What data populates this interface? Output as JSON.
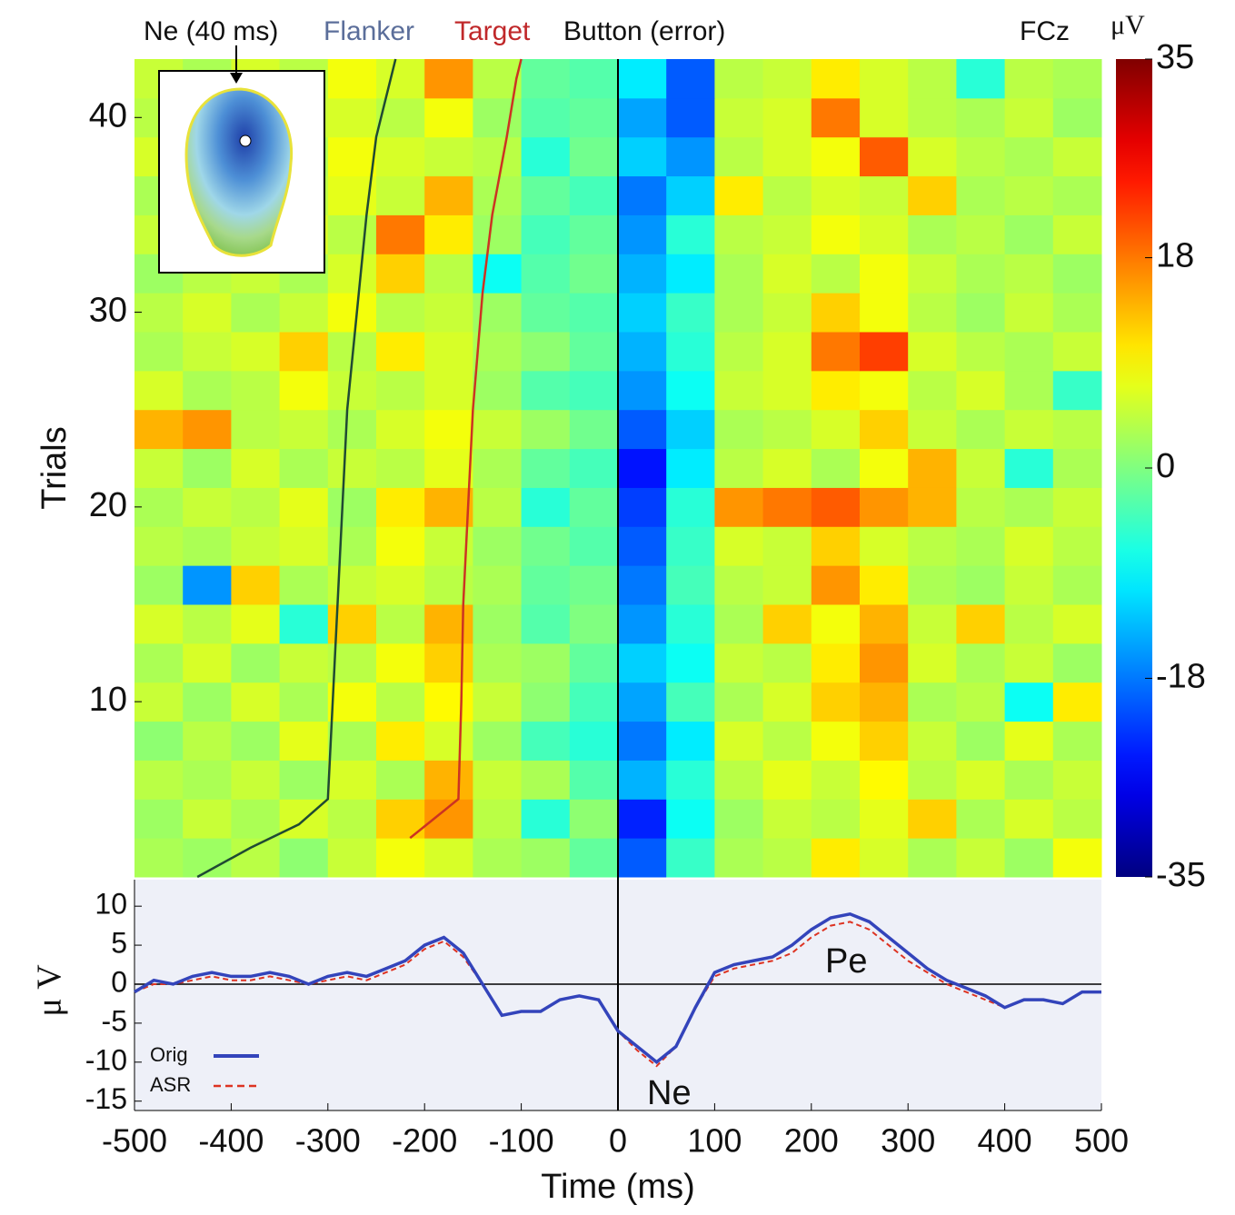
{
  "chart_data": [
    {
      "type": "heatmap",
      "inset_label": "Ne (40 ms)",
      "channel": "FCz",
      "ylabel": "Trials",
      "colormap": "jet",
      "colorbar_label": "μV",
      "clim": [
        -35,
        35
      ],
      "cticks": [
        -35,
        -18,
        0,
        18,
        35
      ],
      "xlim": [
        -500,
        500
      ],
      "ylim": [
        1,
        43
      ],
      "yticks": [
        10,
        20,
        30,
        40
      ],
      "x": [
        -475,
        -425,
        -375,
        -325,
        -275,
        -225,
        -175,
        -125,
        -75,
        -25,
        25,
        75,
        125,
        175,
        225,
        275,
        325,
        375,
        425,
        475
      ],
      "y": [
        2,
        4,
        6,
        8,
        10,
        12,
        14,
        16,
        18,
        20,
        22,
        24,
        26,
        28,
        30,
        32,
        34,
        36,
        38,
        40,
        42
      ],
      "z": [
        [
          3,
          2,
          4,
          1,
          5,
          8,
          6,
          3,
          2,
          -2,
          -20,
          -5,
          3,
          4,
          10,
          6,
          3,
          5,
          2,
          8
        ],
        [
          2,
          5,
          3,
          6,
          4,
          12,
          16,
          4,
          -6,
          1,
          -24,
          -8,
          2,
          5,
          4,
          7,
          12,
          3,
          6,
          4
        ],
        [
          4,
          3,
          5,
          2,
          6,
          3,
          14,
          5,
          3,
          -3,
          -14,
          -6,
          4,
          7,
          5,
          9,
          4,
          6,
          3,
          5
        ],
        [
          1,
          4,
          2,
          7,
          3,
          10,
          6,
          2,
          -4,
          -6,
          -18,
          -10,
          6,
          4,
          8,
          12,
          5,
          2,
          7,
          3
        ],
        [
          5,
          2,
          6,
          3,
          8,
          4,
          9,
          5,
          1,
          -4,
          -15,
          -4,
          3,
          6,
          12,
          14,
          3,
          4,
          -8,
          10
        ],
        [
          3,
          6,
          2,
          5,
          4,
          8,
          12,
          3,
          2,
          -2,
          -12,
          -8,
          5,
          4,
          10,
          16,
          6,
          3,
          5,
          2
        ],
        [
          6,
          4,
          7,
          -6,
          12,
          4,
          14,
          2,
          -3,
          0,
          -16,
          -6,
          3,
          12,
          8,
          14,
          5,
          12,
          4,
          6
        ],
        [
          2,
          -16,
          12,
          3,
          5,
          6,
          4,
          3,
          -2,
          -1,
          -18,
          -4,
          4,
          5,
          16,
          10,
          3,
          2,
          5,
          3
        ],
        [
          4,
          3,
          5,
          6,
          3,
          8,
          5,
          2,
          -1,
          -3,
          -20,
          -5,
          6,
          5,
          12,
          6,
          4,
          3,
          6,
          4
        ],
        [
          3,
          5,
          4,
          7,
          2,
          10,
          14,
          4,
          -6,
          -2,
          -22,
          -6,
          16,
          18,
          20,
          16,
          14,
          4,
          3,
          5
        ],
        [
          5,
          2,
          6,
          3,
          5,
          4,
          7,
          3,
          -2,
          -4,
          -25,
          -10,
          4,
          6,
          3,
          8,
          14,
          5,
          -6,
          3
        ],
        [
          14,
          16,
          4,
          5,
          3,
          6,
          8,
          5,
          2,
          -1,
          -20,
          -12,
          3,
          4,
          6,
          12,
          5,
          3,
          5,
          4
        ],
        [
          6,
          3,
          4,
          8,
          5,
          4,
          6,
          2,
          -3,
          -4,
          -16,
          -8,
          5,
          6,
          10,
          8,
          4,
          6,
          3,
          -5
        ],
        [
          3,
          5,
          6,
          12,
          4,
          10,
          6,
          3,
          1,
          -2,
          -14,
          -6,
          4,
          6,
          18,
          22,
          6,
          4,
          3,
          5
        ],
        [
          4,
          6,
          3,
          5,
          8,
          4,
          5,
          2,
          -2,
          -3,
          -12,
          -5,
          3,
          5,
          12,
          8,
          4,
          2,
          5,
          3
        ],
        [
          2,
          4,
          5,
          3,
          6,
          12,
          4,
          -8,
          -3,
          -1,
          -14,
          -10,
          3,
          6,
          4,
          8,
          5,
          3,
          4,
          2
        ],
        [
          5,
          3,
          4,
          6,
          4,
          18,
          10,
          2,
          -4,
          -2,
          -16,
          -6,
          4,
          5,
          8,
          6,
          3,
          4,
          2,
          5
        ],
        [
          3,
          5,
          2,
          4,
          7,
          5,
          14,
          3,
          -2,
          -4,
          -18,
          -12,
          10,
          4,
          6,
          5,
          12,
          3,
          4,
          3
        ],
        [
          6,
          4,
          5,
          3,
          8,
          6,
          5,
          4,
          -6,
          -1,
          -12,
          -16,
          4,
          6,
          8,
          20,
          6,
          4,
          3,
          5
        ],
        [
          4,
          6,
          3,
          5,
          6,
          4,
          8,
          2,
          -3,
          -2,
          -15,
          -20,
          5,
          6,
          18,
          6,
          4,
          3,
          5,
          2
        ],
        [
          5,
          3,
          6,
          4,
          8,
          6,
          16,
          4,
          -2,
          -3,
          -10,
          -20,
          4,
          5,
          10,
          6,
          4,
          -6,
          4,
          3
        ]
      ],
      "overlays": [
        {
          "name": "Flanker",
          "color": "#1f4a33",
          "label_color": "#5b6e9a",
          "x": [
            -435,
            -380,
            -330,
            -300,
            -295,
            -290,
            -285,
            -280,
            -270,
            -260,
            -250,
            -235,
            -230
          ],
          "y": [
            1,
            2.5,
            3.7,
            5,
            10,
            15,
            20,
            25,
            30,
            35,
            39,
            42,
            43
          ]
        },
        {
          "name": "Target",
          "color": "#cc3322",
          "label_color": "#c0282a",
          "x": [
            -215,
            -190,
            -165,
            -162,
            -160,
            -155,
            -150,
            -145,
            -140,
            -130,
            -115,
            -105,
            -100
          ],
          "y": [
            3,
            4,
            5,
            10,
            15,
            20,
            25,
            28,
            31,
            35,
            39,
            42,
            43
          ]
        }
      ],
      "markers": {
        "name": "Button (error)",
        "x": 0,
        "color": "#000000"
      }
    },
    {
      "type": "line",
      "ylabel": "μ V",
      "xlabel": "Time (ms)",
      "annotations": [
        "Pe",
        "Ne"
      ],
      "legend": "lower left",
      "xlim": [
        -500,
        500
      ],
      "ylim": [
        -16.2,
        13.4
      ],
      "xticks": [
        -500,
        -400,
        -300,
        -200,
        -100,
        0,
        100,
        200,
        300,
        400,
        500
      ],
      "yticks": [
        -15,
        -10,
        -5,
        0,
        5,
        10
      ],
      "x": [
        -500,
        -480,
        -460,
        -440,
        -420,
        -400,
        -380,
        -360,
        -340,
        -320,
        -300,
        -280,
        -260,
        -240,
        -220,
        -200,
        -180,
        -160,
        -140,
        -120,
        -100,
        -80,
        -60,
        -40,
        -20,
        0,
        20,
        40,
        60,
        80,
        100,
        120,
        140,
        160,
        180,
        200,
        220,
        240,
        260,
        280,
        300,
        320,
        340,
        360,
        380,
        400,
        420,
        440,
        460,
        480,
        500
      ],
      "series": [
        {
          "name": "Orig",
          "color": "#3344bb",
          "dash": false,
          "values": [
            -1,
            0.5,
            0,
            1,
            1.5,
            1,
            1,
            1.5,
            1,
            0,
            1,
            1.5,
            1,
            2,
            3,
            5,
            6,
            4,
            0,
            -4,
            -3.5,
            -3.5,
            -2,
            -1.5,
            -2,
            -6,
            -8,
            -10,
            -8,
            -3,
            1.5,
            2.5,
            3,
            3.5,
            5,
            7,
            8.5,
            9,
            8,
            6,
            4,
            2,
            0.5,
            -0.5,
            -1.5,
            -3,
            -2,
            -2,
            -2.5,
            -1,
            -1
          ]
        },
        {
          "name": "ASR",
          "color": "#dd3322",
          "dash": true,
          "values": [
            -1,
            0,
            0,
            0.5,
            1,
            0.5,
            0.5,
            1,
            0.5,
            0,
            0.5,
            1,
            0.5,
            1.5,
            2.5,
            4.5,
            5.5,
            3.5,
            0,
            -4,
            -3.5,
            -3.5,
            -2,
            -1.5,
            -2,
            -6,
            -8.5,
            -10.5,
            -8,
            -3,
            1,
            2,
            2.5,
            3,
            4,
            6,
            7.5,
            8,
            7,
            5,
            3,
            1.5,
            0,
            -1,
            -2,
            -3,
            -2,
            -2,
            -2.5,
            -1,
            -1
          ]
        }
      ]
    }
  ]
}
